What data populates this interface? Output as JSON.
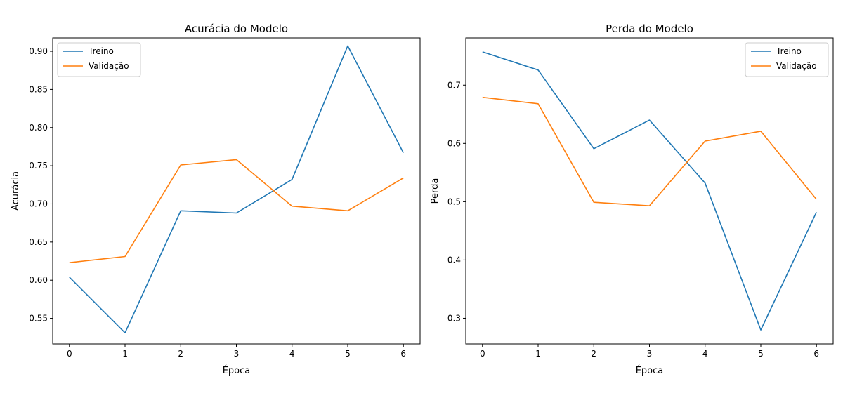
{
  "chart_data": [
    {
      "type": "line",
      "title": "Acurácia do Modelo",
      "xlabel": "Época",
      "ylabel": "Acurácia",
      "x": [
        0,
        1,
        2,
        3,
        4,
        5,
        6
      ],
      "xlim": [
        -0.3,
        6.3
      ],
      "ylim": [
        0.5165,
        0.9175
      ],
      "xticks": [
        0,
        1,
        2,
        3,
        4,
        5,
        6
      ],
      "yticks": [
        0.55,
        0.6,
        0.65,
        0.7,
        0.75,
        0.8,
        0.85,
        0.9
      ],
      "ytick_labels": [
        "0.55",
        "0.60",
        "0.65",
        "0.70",
        "0.75",
        "0.80",
        "0.85",
        "0.90"
      ],
      "legend": "top-left",
      "grid": false,
      "series": [
        {
          "name": "Treino",
          "color": "#1f77b4",
          "values": [
            0.604,
            0.531,
            0.691,
            0.688,
            0.732,
            0.907,
            0.767
          ]
        },
        {
          "name": "Validação",
          "color": "#ff7f0e",
          "values": [
            0.623,
            0.631,
            0.751,
            0.758,
            0.697,
            0.691,
            0.734
          ]
        }
      ]
    },
    {
      "type": "line",
      "title": "Perda do Modelo",
      "xlabel": "Época",
      "ylabel": "Perda",
      "x": [
        0,
        1,
        2,
        3,
        4,
        5,
        6
      ],
      "xlim": [
        -0.3,
        6.3
      ],
      "ylim": [
        0.256,
        0.781
      ],
      "xticks": [
        0,
        1,
        2,
        3,
        4,
        5,
        6
      ],
      "yticks": [
        0.3,
        0.4,
        0.5,
        0.6,
        0.7
      ],
      "ytick_labels": [
        "0.3",
        "0.4",
        "0.5",
        "0.6",
        "0.7"
      ],
      "legend": "top-right",
      "grid": false,
      "series": [
        {
          "name": "Treino",
          "color": "#1f77b4",
          "values": [
            0.757,
            0.726,
            0.591,
            0.64,
            0.532,
            0.28,
            0.482
          ]
        },
        {
          "name": "Validação",
          "color": "#ff7f0e",
          "values": [
            0.679,
            0.668,
            0.499,
            0.493,
            0.604,
            0.621,
            0.504
          ]
        }
      ]
    }
  ]
}
